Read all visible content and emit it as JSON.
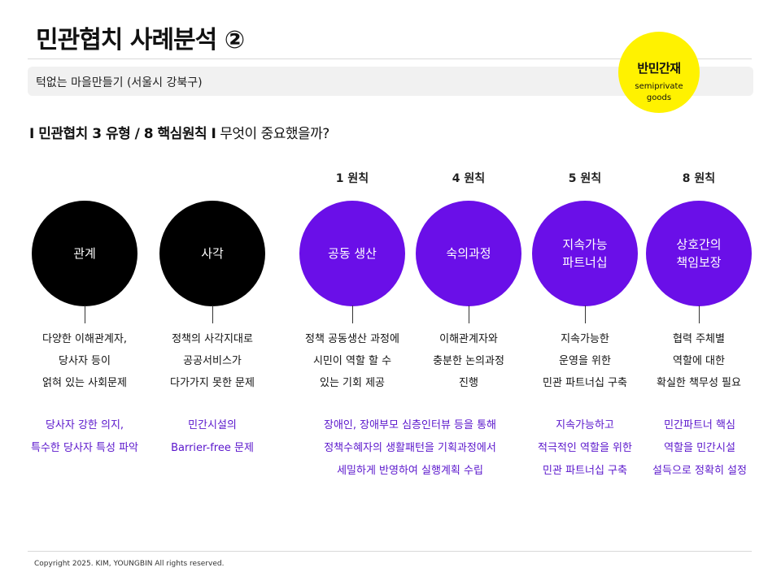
{
  "title": "민관협치 사례분석 ②",
  "subtitle": "턱없는 마을만들기 (서울시 강북구)",
  "badge": {
    "title": "반민간재",
    "subtitle": "semiprivate goods"
  },
  "section": {
    "prefix": "I 민관협치 3 유형 / 8 핵심원칙 I",
    "question": " 무엇이 중요했을까?"
  },
  "columns": [
    {
      "principle": "",
      "circle": "관계",
      "desc": "다양한 이해관계자,\n당사자 등이\n얽혀 있는 사회문제"
    },
    {
      "principle": "",
      "circle": "사각",
      "desc": "정책의 사각지대로\n공공서비스가\n다가가지 못한 문제"
    },
    {
      "principle": "1 원칙",
      "circle": "공동 생산",
      "desc": "정책 공동생산 과정에\n시민이 역할 할 수\n있는 기회 제공"
    },
    {
      "principle": "4 원칙",
      "circle": "숙의과정",
      "desc": "이해관계자와\n충분한 논의과정\n진행"
    },
    {
      "principle": "5 원칙",
      "circle": "지속가능\n파트너십",
      "desc": "지속가능한\n운영을 위한\n민관 파트너십 구축"
    },
    {
      "principle": "8 원칙",
      "circle": "상호간의\n책임보장",
      "desc": "협력 주체별\n역할에 대한\n확실한 책무성 필요"
    }
  ],
  "notes": [
    "당사자 강한 의지,\n특수한 당사자 특성 파악",
    "민간시설의\nBarrier-free 문제",
    "장애인, 장애부모 심층인터뷰 등을 통해\n정책수혜자의 생활패턴을 기획과정에서\n세밀하게 반영하여 실행계획 수립",
    "지속가능하고\n적극적인 역할을 위한\n민관 파트너십 구축",
    "민간파트너 핵심\n역할을 민간시설\n설득으로 정확히 설정"
  ],
  "footer": "Copyright 2025. KIM, YOUNGBIN All rights reserved.",
  "colors": {
    "accent": "#6a0fe8",
    "badge": "#fff200",
    "note": "#5a16cc"
  }
}
